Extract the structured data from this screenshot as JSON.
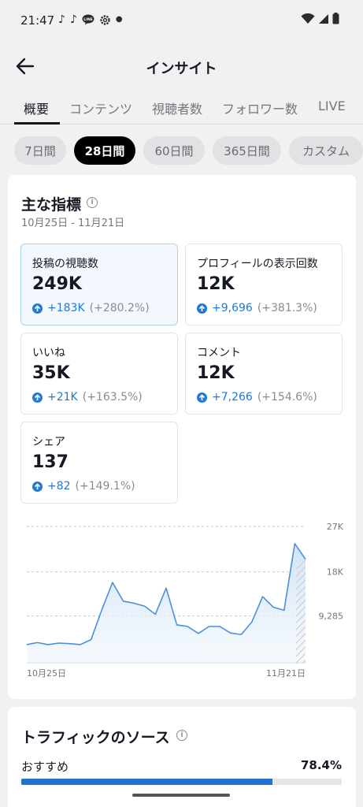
{
  "status_bar": {
    "time": "21:47",
    "left_icons": [
      "tiktok-icon",
      "tiktok-icon",
      "line-icon",
      "gear-icon",
      "dot-icon"
    ],
    "right_icons": [
      "wifi-icon",
      "signal-icon",
      "battery-icon"
    ]
  },
  "header": {
    "title": "インサイト",
    "back_icon": "arrow-left-icon"
  },
  "tabs": [
    {
      "label": "概要",
      "active": true
    },
    {
      "label": "コンテンツ",
      "active": false
    },
    {
      "label": "視聴者数",
      "active": false
    },
    {
      "label": "フォロワー数",
      "active": false
    },
    {
      "label": "LIVE",
      "active": false
    }
  ],
  "periods": [
    {
      "label": "7日間",
      "active": false
    },
    {
      "label": "28日間",
      "active": true
    },
    {
      "label": "60日間",
      "active": false
    },
    {
      "label": "365日間",
      "active": false
    },
    {
      "label": "カスタム",
      "active": false
    }
  ],
  "key_metrics": {
    "title": "主な指標",
    "date_range": "10月25日 - 11月21日",
    "items": [
      {
        "label": "投稿の視聴数",
        "value": "249K",
        "change": "+183K",
        "percent": "(+280.2%)",
        "selected": true
      },
      {
        "label": "プロフィールの表示回数",
        "value": "12K",
        "change": "+9,696",
        "percent": "(+381.3%)",
        "selected": false
      },
      {
        "label": "いいね",
        "value": "35K",
        "change": "+21K",
        "percent": "(+163.5%)",
        "selected": false
      },
      {
        "label": "コメント",
        "value": "12K",
        "change": "+7,266",
        "percent": "(+154.6%)",
        "selected": false
      },
      {
        "label": "シェア",
        "value": "137",
        "change": "+82",
        "percent": "(+149.1%)",
        "selected": false
      }
    ]
  },
  "chart_data": {
    "type": "area",
    "x_tick_labels": [
      "10月25日",
      "11月21日"
    ],
    "y_ticks": [
      {
        "value": 27000,
        "label": "27K"
      },
      {
        "value": 18000,
        "label": "18K"
      },
      {
        "value": 9285,
        "label": "9,285"
      }
    ],
    "ylim": [
      0,
      27000
    ],
    "values": [
      3600,
      4000,
      3600,
      3900,
      3800,
      3600,
      4600,
      10500,
      15900,
      12200,
      11800,
      11200,
      9600,
      14800,
      7500,
      7200,
      5800,
      7200,
      7200,
      5900,
      5600,
      8100,
      13100,
      11000,
      10400,
      23600,
      20500
    ],
    "projection_last": true,
    "color": "#4a90d9",
    "grid": true
  },
  "traffic": {
    "title": "トラフィックのソース",
    "items": [
      {
        "label": "おすすめ",
        "value": "78.4%",
        "fraction": 0.784
      }
    ],
    "bar_color": "#1f74cf"
  }
}
